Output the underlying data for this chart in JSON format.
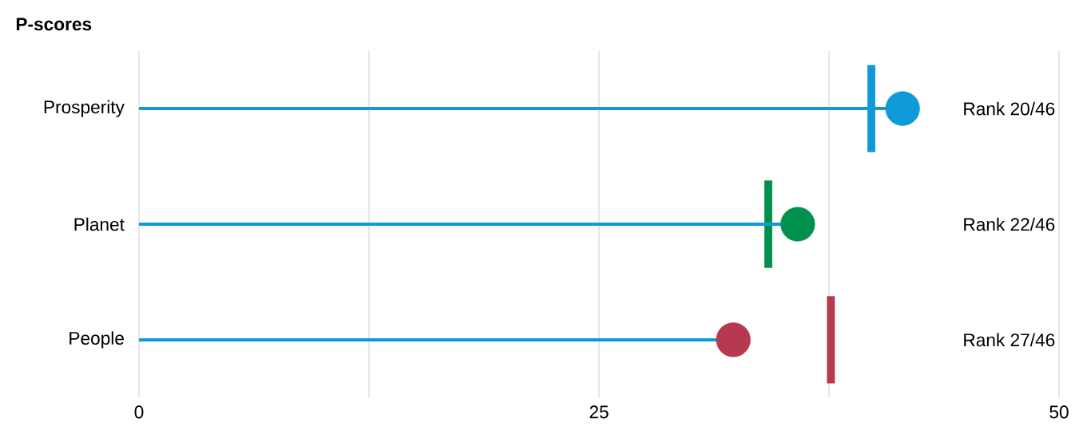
{
  "chart_data": {
    "type": "lollipop",
    "title": "P-scores",
    "orientation": "horizontal",
    "categories": [
      "Prosperity",
      "Planet",
      "People"
    ],
    "series": [
      {
        "type": "lollipop",
        "color": "#0e9ad7",
        "colors": [
          "#0e9ad7",
          "#00914f",
          "#b5394f"
        ],
        "values": [
          41.5,
          35.8,
          32.3
        ]
      }
    ],
    "ref_lines": [
      {
        "axis": "x",
        "value": 39.8,
        "color": "#0e9ad7"
      },
      {
        "axis": "x",
        "value": 34.2,
        "color": "#00914f"
      },
      {
        "axis": "x",
        "value": 37.6,
        "color": "#b5394f"
      }
    ],
    "annotations": [
      "Rank  20/46",
      "Rank  22/46",
      "Rank  27/46"
    ],
    "xlim": [
      0,
      50
    ],
    "xticks": [
      0,
      {
        "value": 12.5,
        "label": null
      },
      25,
      {
        "value": 37.5,
        "label": null
      },
      50
    ],
    "grid": "x"
  }
}
